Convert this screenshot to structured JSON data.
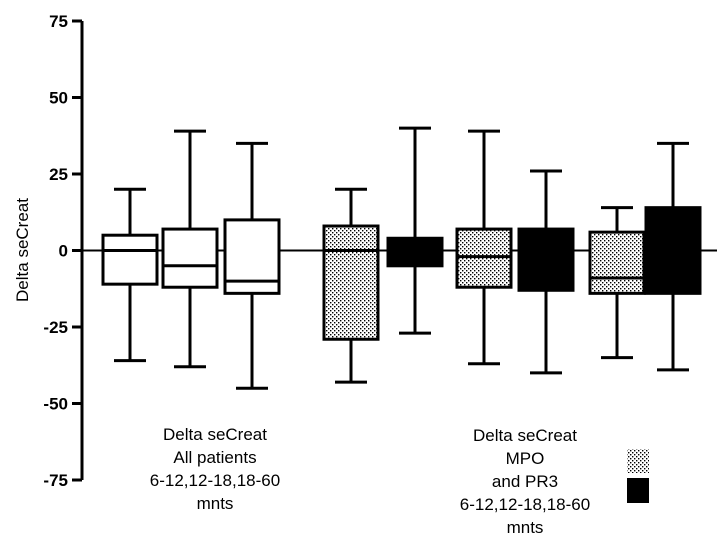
{
  "chart_data": {
    "type": "box",
    "ylabel": "Delta seCreat",
    "ylim": [
      -75,
      75
    ],
    "yticks": [
      75,
      50,
      25,
      0,
      -25,
      -50,
      -75
    ],
    "zero_line": true,
    "boxes": [
      {
        "group": "all",
        "fill": "white",
        "whisker_low": -36,
        "q1": -11,
        "median": 0,
        "q3": 5,
        "whisker_high": 20
      },
      {
        "group": "all",
        "fill": "white",
        "whisker_low": -38,
        "q1": -12,
        "median": -5,
        "q3": 7,
        "whisker_high": 39
      },
      {
        "group": "all",
        "fill": "white",
        "whisker_low": -45,
        "q1": -14,
        "median": -10,
        "q3": 10,
        "whisker_high": 35
      },
      {
        "group": "MPO",
        "fill": "dotted",
        "whisker_low": -43,
        "q1": -29,
        "median": 0,
        "q3": 8,
        "whisker_high": 20
      },
      {
        "group": "PR3",
        "fill": "black",
        "whisker_low": -27,
        "q1": -5,
        "median": 0,
        "q3": 4,
        "whisker_high": 40
      },
      {
        "group": "MPO",
        "fill": "dotted",
        "whisker_low": -37,
        "q1": -12,
        "median": -2,
        "q3": 7,
        "whisker_high": 39
      },
      {
        "group": "PR3",
        "fill": "black",
        "whisker_low": -40,
        "q1": -13,
        "median": 0,
        "q3": 7,
        "whisker_high": 26
      },
      {
        "group": "MPO",
        "fill": "dotted",
        "whisker_low": -35,
        "q1": -14,
        "median": -9,
        "q3": 6,
        "whisker_high": 14
      },
      {
        "group": "PR3",
        "fill": "black",
        "whisker_low": -39,
        "q1": -14,
        "median": 0,
        "q3": 14,
        "whisker_high": 35
      }
    ],
    "annotations": {
      "left": [
        "Delta seCreat",
        "All patients",
        "6-12,12-18,18-60",
        "mnts"
      ],
      "right": [
        "Delta seCreat",
        "MPO",
        "and PR3",
        "6-12,12-18,18-60",
        "mnts"
      ]
    },
    "legend": {
      "placement": "bottom-right",
      "entries": [
        {
          "fill": "dotted"
        },
        {
          "fill": "black"
        }
      ]
    }
  }
}
